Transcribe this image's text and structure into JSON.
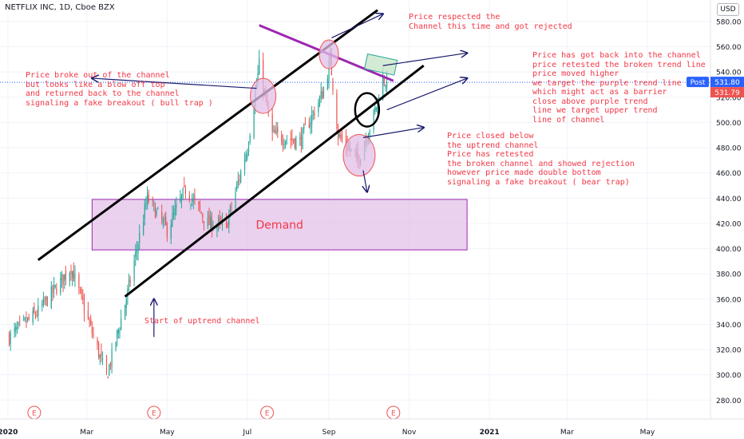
{
  "header": {
    "title": "NETFLIX INC, 1D, Cboe BZX",
    "currency_button": "USD"
  },
  "price_tags": {
    "post_label": "Post",
    "post_value": "531.80",
    "last_value": "531.79"
  },
  "colors": {
    "bull": "#26a69a",
    "bear": "#ef5350",
    "annotation": "#f23645",
    "channel": "#000000",
    "purple_trendline": "#9c27b0",
    "demand_fill": "#e1bee7",
    "demand_border": "#9c27b0",
    "arrow": "#1a1a6e",
    "post_tag": "#2962ff",
    "last_tag": "#ef5350"
  },
  "demand_zone": {
    "label": "Demand",
    "low": 399,
    "high": 439
  },
  "annotations": {
    "bull_trap": "Price broke out of the channel\nbut looks like a blow off top\nand returned back to the channel\nsignaling a fake breakout ( bull trap )",
    "rejected": "Price respected the\nChannel this time and got rejected",
    "retest": "Price has got back into the channel\nprice retested the broken trend line\nprice moved higher\nwe target the purple trend line\nwhich might act as a barrier\nclose above purple trend\nline we target upper trend\nline of channel",
    "bear_trap": "Price closed below\nthe uptrend channel\nPrice has retested\nthe broken channel and showed rejection\nhowever price made double bottom\nsignaling a fake breakout ( bear trap)",
    "start": "Start of uptrend channel"
  },
  "earnings_marker": "E",
  "chart_data": {
    "type": "candlestick",
    "title": "NETFLIX INC, 1D, Cboe BZX",
    "y_ticks": [
      280.0,
      300.0,
      320.0,
      340.0,
      360.0,
      380.0,
      400.0,
      420.0,
      440.0,
      460.0,
      480.0,
      500.0,
      520.0,
      540.0,
      560.0,
      580.0
    ],
    "y_range": [
      265,
      597
    ],
    "x_ticks": [
      "2020",
      "Mar",
      "May",
      "Jul",
      "Sep",
      "Nov",
      "2021",
      "Mar",
      "May"
    ],
    "x_range": [
      "2019-12-26",
      "2021-06-18"
    ],
    "grid": true,
    "last_price": 531.79,
    "earnings_dates": [
      "2020-01-21",
      "2020-04-21",
      "2020-07-16",
      "2020-10-20"
    ],
    "key_points": [
      {
        "date": "2020-01-02",
        "close": 330
      },
      {
        "date": "2020-01-24",
        "close": 350
      },
      {
        "date": "2020-02-18",
        "close": 385
      },
      {
        "date": "2020-03-16",
        "close": 298
      },
      {
        "date": "2020-04-01",
        "close": 365
      },
      {
        "date": "2020-04-16",
        "close": 440
      },
      {
        "date": "2020-05-01",
        "close": 415
      },
      {
        "date": "2020-05-15",
        "close": 447
      },
      {
        "date": "2020-06-01",
        "close": 420
      },
      {
        "date": "2020-06-15",
        "close": 418
      },
      {
        "date": "2020-07-01",
        "close": 480
      },
      {
        "date": "2020-07-10",
        "close": 545
      },
      {
        "date": "2020-07-20",
        "close": 490
      },
      {
        "date": "2020-08-10",
        "close": 485
      },
      {
        "date": "2020-08-28",
        "close": 525
      },
      {
        "date": "2020-09-02",
        "close": 550
      },
      {
        "date": "2020-09-08",
        "close": 490
      },
      {
        "date": "2020-09-23",
        "close": 470
      },
      {
        "date": "2020-10-05",
        "close": 505
      },
      {
        "date": "2020-10-12",
        "close": 535
      },
      {
        "date": "2020-10-15",
        "close": 531.79
      }
    ]
  }
}
